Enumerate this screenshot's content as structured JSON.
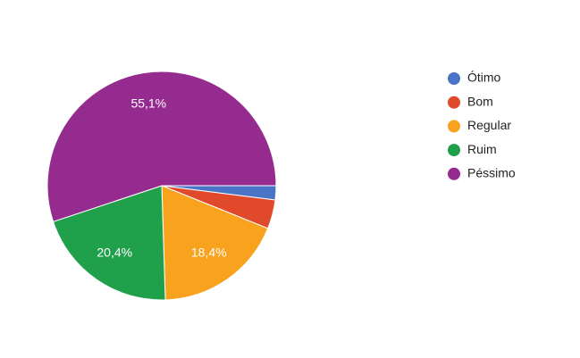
{
  "chart_data": {
    "type": "pie",
    "categories": [
      "Ótimo",
      "Bom",
      "Regular",
      "Ruim",
      "Péssimo"
    ],
    "values": [
      2,
      4.1,
      18.4,
      20.4,
      55.1
    ],
    "value_labels": [
      null,
      null,
      "18,4%",
      "20,4%",
      "55,1%"
    ],
    "colors": [
      "#4a74c6",
      "#e04a2b",
      "#f9a21d",
      "#21a04c",
      "#962b8f"
    ],
    "legend": "right"
  }
}
